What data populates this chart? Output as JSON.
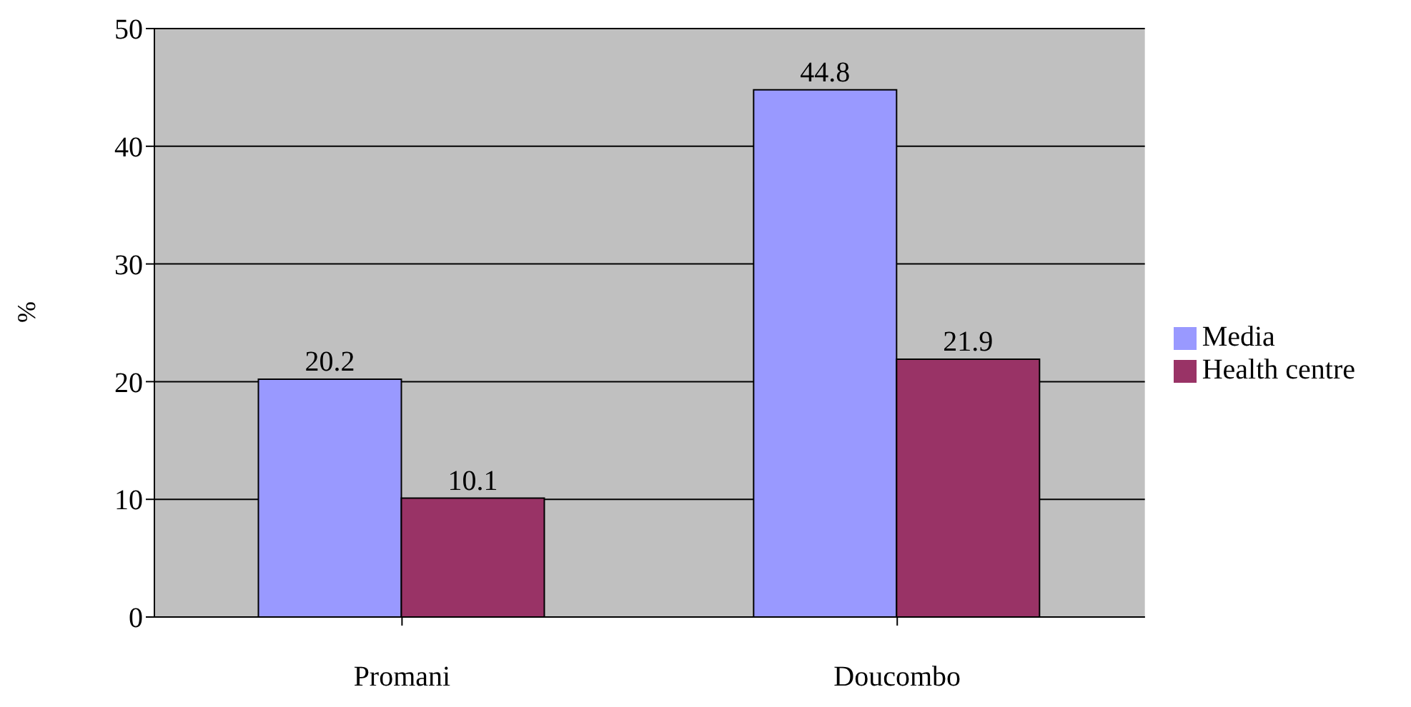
{
  "chart_data": {
    "type": "bar",
    "ylabel": "%",
    "categories": [
      "Promani",
      "Doucombo"
    ],
    "series": [
      {
        "name": "Media",
        "color": "#9999ff",
        "values": [
          20.2,
          44.8
        ]
      },
      {
        "name": "Health centre",
        "color": "#993366",
        "values": [
          10.1,
          21.9
        ]
      }
    ],
    "ylim": [
      0,
      50
    ],
    "yticks": [
      0,
      10,
      20,
      30,
      40,
      50
    ],
    "grid": "y",
    "legend": "right",
    "data_labels": true
  }
}
